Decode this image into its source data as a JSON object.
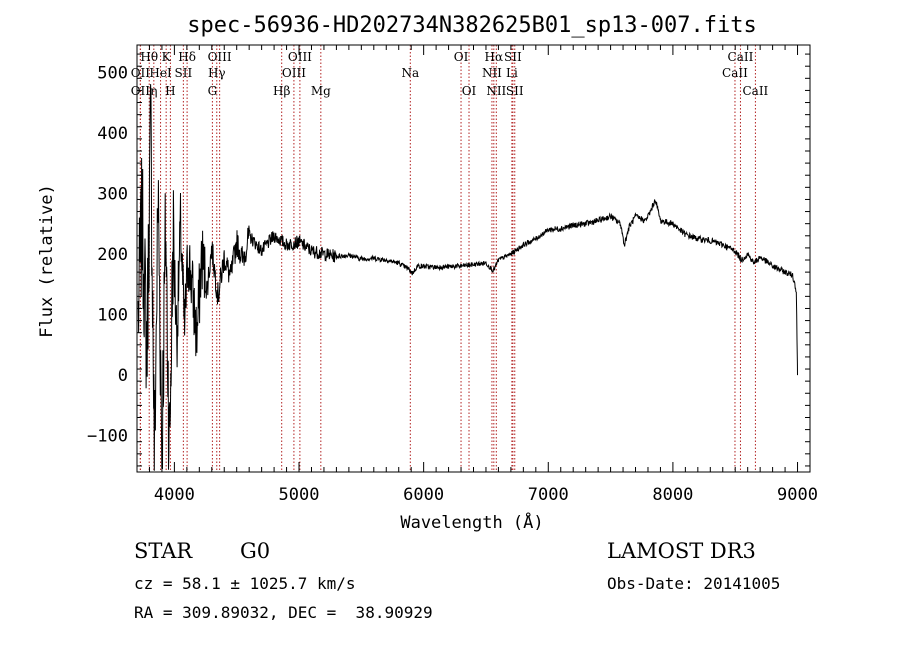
{
  "chart_data": {
    "type": "line",
    "title": "spec-56936-HD202734N382625B01_sp13-007.fits",
    "xlabel": "Wavelength (Å)",
    "ylabel": "Flux (relative)",
    "xlim": [
      3700,
      9100
    ],
    "ylim": [
      -160,
      545
    ],
    "x_ticks": [
      4000,
      5000,
      6000,
      7000,
      8000,
      9000
    ],
    "y_ticks": [
      -100,
      0,
      100,
      200,
      300,
      400,
      500
    ],
    "y_tick_labels": [
      "−100",
      "0",
      "100",
      "200",
      "300",
      "400",
      "500"
    ],
    "line_color": "#000000",
    "marker_color": "#b22222",
    "spectrum_points": [
      [
        3710,
        100
      ],
      [
        3740,
        260
      ],
      [
        3780,
        40
      ],
      [
        3810,
        420
      ],
      [
        3840,
        -140
      ],
      [
        3870,
        300
      ],
      [
        3900,
        -120
      ],
      [
        3930,
        250
      ],
      [
        3960,
        -130
      ],
      [
        3990,
        230
      ],
      [
        4020,
        60
      ],
      [
        4050,
        250
      ],
      [
        4080,
        70
      ],
      [
        4110,
        200
      ],
      [
        4140,
        150
      ],
      [
        4180,
        60
      ],
      [
        4220,
        200
      ],
      [
        4260,
        140
      ],
      [
        4300,
        210
      ],
      [
        4350,
        130
      ],
      [
        4400,
        195
      ],
      [
        4450,
        160
      ],
      [
        4500,
        220
      ],
      [
        4550,
        190
      ],
      [
        4600,
        230
      ],
      [
        4700,
        205
      ],
      [
        4800,
        230
      ],
      [
        4900,
        215
      ],
      [
        5000,
        220
      ],
      [
        5100,
        205
      ],
      [
        5200,
        200
      ],
      [
        5300,
        196
      ],
      [
        5400,
        198
      ],
      [
        5500,
        192
      ],
      [
        5600,
        193
      ],
      [
        5700,
        190
      ],
      [
        5800,
        185
      ],
      [
        5880,
        175
      ],
      [
        5910,
        168
      ],
      [
        5950,
        180
      ],
      [
        6100,
        178
      ],
      [
        6300,
        180
      ],
      [
        6500,
        185
      ],
      [
        6560,
        172
      ],
      [
        6600,
        190
      ],
      [
        6700,
        200
      ],
      [
        6800,
        215
      ],
      [
        6900,
        225
      ],
      [
        7000,
        240
      ],
      [
        7100,
        242
      ],
      [
        7200,
        247
      ],
      [
        7300,
        250
      ],
      [
        7400,
        255
      ],
      [
        7500,
        262
      ],
      [
        7580,
        250
      ],
      [
        7610,
        215
      ],
      [
        7650,
        245
      ],
      [
        7700,
        262
      ],
      [
        7780,
        255
      ],
      [
        7820,
        270
      ],
      [
        7860,
        290
      ],
      [
        7900,
        255
      ],
      [
        8000,
        250
      ],
      [
        8100,
        232
      ],
      [
        8200,
        225
      ],
      [
        8300,
        222
      ],
      [
        8400,
        215
      ],
      [
        8500,
        205
      ],
      [
        8550,
        190
      ],
      [
        8600,
        200
      ],
      [
        8650,
        185
      ],
      [
        8700,
        195
      ],
      [
        8800,
        180
      ],
      [
        8900,
        170
      ],
      [
        8960,
        165
      ],
      [
        8990,
        140
      ],
      [
        9000,
        5
      ]
    ],
    "line_markers": [
      {
        "name": "CaII K",
        "label": "K",
        "wavelength": 3934,
        "row": 1
      },
      {
        "name": "CaII H",
        "label": "H",
        "wavelength": 3968,
        "row": 3
      },
      {
        "name": "OII",
        "label": "OII",
        "wavelength": 3727,
        "row": 2
      },
      {
        "name": "OII b",
        "label": "OII",
        "wavelength": 3727,
        "row": 3
      },
      {
        "name": "H theta",
        "label": "Hθ",
        "wavelength": 3798,
        "row": 1
      },
      {
        "name": "H eta",
        "label": "η",
        "wavelength": 3835,
        "row": 3
      },
      {
        "name": "HeI",
        "label": "HeI",
        "wavelength": 3889,
        "row": 2
      },
      {
        "name": "SII 4072",
        "label": "SII",
        "wavelength": 4072,
        "row": 2
      },
      {
        "name": "H delta",
        "label": "Hδ",
        "wavelength": 4102,
        "row": 1
      },
      {
        "name": "OIII 4363",
        "label": "OIII",
        "wavelength": 4363,
        "row": 1
      },
      {
        "name": "H gamma",
        "label": "Hγ",
        "wavelength": 4340,
        "row": 2
      },
      {
        "name": "G band",
        "label": "G",
        "wavelength": 4305,
        "row": 3
      },
      {
        "name": "H beta",
        "label": "Hβ",
        "wavelength": 4861,
        "row": 3
      },
      {
        "name": "OIII 5007",
        "label": "OIII",
        "wavelength": 5007,
        "row": 1
      },
      {
        "name": "OIII 4959",
        "label": "OIII",
        "wavelength": 4959,
        "row": 2
      },
      {
        "name": "Mg",
        "label": "Mg",
        "wavelength": 5175,
        "row": 3
      },
      {
        "name": "Na",
        "label": "Na",
        "wavelength": 5893,
        "row": 2
      },
      {
        "name": "OI 6300",
        "label": "OI",
        "wavelength": 6300,
        "row": 1
      },
      {
        "name": "OI 6364",
        "label": "OI",
        "wavelength": 6364,
        "row": 3
      },
      {
        "name": "H alpha",
        "label": "Hα",
        "wavelength": 6563,
        "row": 1
      },
      {
        "name": "NII 6548",
        "label": "NII",
        "wavelength": 6548,
        "row": 2
      },
      {
        "name": "NII 6583",
        "label": "NII",
        "wavelength": 6583,
        "row": 3
      },
      {
        "name": "SII 6716",
        "label": "SII",
        "wavelength": 6716,
        "row": 1
      },
      {
        "name": "Li",
        "label": "Li",
        "wavelength": 6708,
        "row": 2
      },
      {
        "name": "SII 6731",
        "label": "SII",
        "wavelength": 6731,
        "row": 3
      },
      {
        "name": "CaII 8542",
        "label": "CaII",
        "wavelength": 8542,
        "row": 1
      },
      {
        "name": "CaII 8498",
        "label": "CaII",
        "wavelength": 8498,
        "row": 2
      },
      {
        "name": "CaII 8662",
        "label": "CaII",
        "wavelength": 8662,
        "row": 3
      }
    ]
  },
  "info": {
    "object_class": "STAR",
    "subclass": "G0",
    "survey": "LAMOST DR3",
    "redshift": "cz = 58.1 ± 1025.7 km/s",
    "obs_date": "Obs-Date: 20141005",
    "coords": "RA = 309.89032, DEC =  38.90929"
  }
}
